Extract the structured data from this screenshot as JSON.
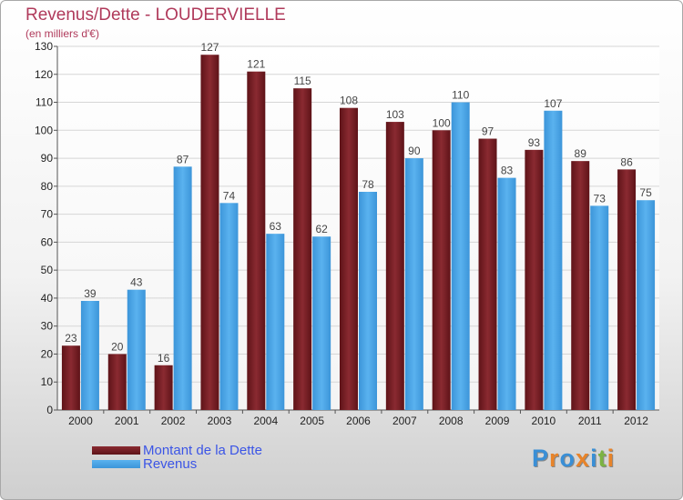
{
  "title": "Revenus/Dette - LOUDERVIELLE",
  "subtitle": "(en milliers d'€)",
  "logo": {
    "text": "Proxiti",
    "letters": [
      "P",
      "r",
      "o",
      "x",
      "i",
      "t",
      "i"
    ],
    "letter_colors": [
      "#3a8fd6",
      "#e8842a",
      "#3a8fd6",
      "#e8842a",
      "#3a8fd6",
      "#7cb342",
      "#e8842a"
    ]
  },
  "chart_data": {
    "type": "bar",
    "title": "Revenus/Dette - LOUDERVIELLE",
    "subtitle": "(en milliers d'€)",
    "categories": [
      "2000",
      "2001",
      "2002",
      "2003",
      "2004",
      "2005",
      "2006",
      "2007",
      "2008",
      "2009",
      "2010",
      "2011",
      "2012"
    ],
    "series": [
      {
        "name": "Montant de la Dette",
        "color": "#7a1f25",
        "values": [
          23,
          20,
          16,
          127,
          121,
          115,
          108,
          103,
          100,
          97,
          93,
          89,
          86
        ]
      },
      {
        "name": "Revenus",
        "color": "#4aa3e6",
        "values": [
          39,
          43,
          87,
          74,
          63,
          62,
          78,
          90,
          110,
          83,
          107,
          73,
          75
        ]
      }
    ],
    "ylim": [
      0,
      130
    ],
    "yticks": [
      0,
      10,
      20,
      30,
      40,
      50,
      60,
      70,
      80,
      90,
      100,
      110,
      120,
      130
    ],
    "grid": true,
    "legend": "bottom-left"
  }
}
